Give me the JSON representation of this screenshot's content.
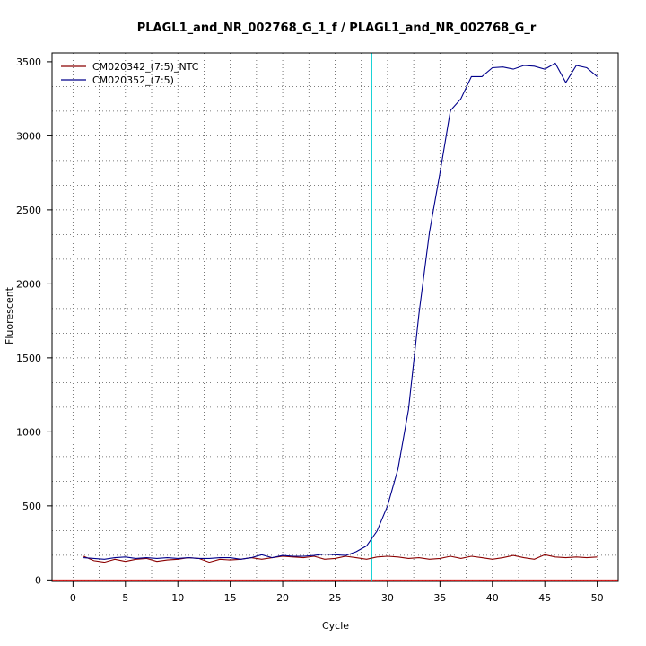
{
  "chart_data": {
    "type": "line",
    "title": "PLAGL1_and_NR_002768_G_1_f / PLAGL1_and_NR_002768_G_r",
    "xlabel": "Cycle",
    "ylabel": "Fluorescent",
    "xlim": [
      -2,
      52
    ],
    "ylim": [
      -10,
      3560
    ],
    "x_ticks": [
      0,
      5,
      10,
      15,
      20,
      25,
      30,
      35,
      40,
      45,
      50
    ],
    "y_ticks": [
      0,
      500,
      1000,
      1500,
      2000,
      2500,
      3000,
      3500
    ],
    "grid": true,
    "legend_position": "top-left",
    "threshold_line": {
      "x": 28.5,
      "color": "#00ced1"
    },
    "baseline": {
      "y": 0,
      "color": "#cc0000"
    },
    "series": [
      {
        "name": "CM020342_(7:5)_NTC",
        "color": "#8b0000",
        "x": [
          1,
          2,
          3,
          4,
          5,
          6,
          7,
          8,
          9,
          10,
          11,
          12,
          13,
          14,
          15,
          16,
          17,
          18,
          19,
          20,
          21,
          22,
          23,
          24,
          25,
          26,
          27,
          28,
          29,
          30,
          31,
          32,
          33,
          34,
          35,
          36,
          37,
          38,
          39,
          40,
          41,
          42,
          43,
          44,
          45,
          46,
          47,
          48,
          49,
          50
        ],
        "values": [
          160,
          130,
          120,
          140,
          125,
          140,
          145,
          125,
          135,
          140,
          150,
          145,
          120,
          140,
          135,
          140,
          150,
          140,
          150,
          160,
          155,
          150,
          160,
          140,
          145,
          160,
          150,
          140,
          155,
          160,
          155,
          145,
          150,
          140,
          145,
          160,
          145,
          160,
          150,
          140,
          150,
          165,
          150,
          140,
          170,
          155,
          150,
          155,
          150,
          155
        ]
      },
      {
        "name": "CM020352_(7:5)",
        "color": "#00008b",
        "x": [
          1,
          2,
          3,
          4,
          5,
          6,
          7,
          8,
          9,
          10,
          11,
          12,
          13,
          14,
          15,
          16,
          17,
          18,
          19,
          20,
          21,
          22,
          23,
          24,
          25,
          26,
          27,
          28,
          29,
          30,
          31,
          32,
          33,
          34,
          35,
          36,
          37,
          38,
          39,
          40,
          41,
          42,
          43,
          44,
          45,
          46,
          47,
          48,
          49,
          50
        ],
        "values": [
          150,
          145,
          140,
          150,
          155,
          145,
          150,
          145,
          150,
          145,
          150,
          145,
          145,
          150,
          150,
          140,
          150,
          170,
          150,
          165,
          160,
          160,
          165,
          175,
          170,
          165,
          190,
          230,
          330,
          500,
          750,
          1150,
          1800,
          2350,
          2750,
          3170,
          3250,
          3400,
          3400,
          3460,
          3465,
          3450,
          3475,
          3470,
          3450,
          3490,
          3360,
          3475,
          3460,
          3400
        ]
      }
    ]
  }
}
